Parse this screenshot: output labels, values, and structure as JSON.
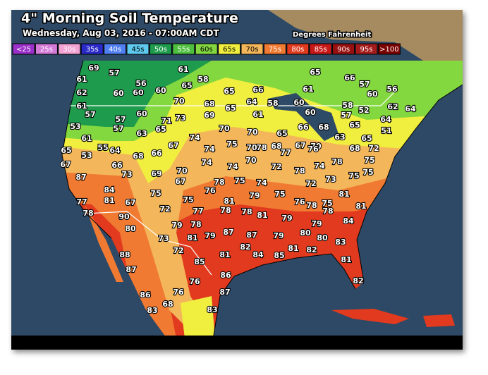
{
  "header": {
    "title": "4\" Morning Soil Temperature",
    "subtitle": "Wednesday, Aug 03, 2016 - 07:00AM CDT",
    "units": "Degrees Fahrenheit"
  },
  "legend": [
    {
      "label": "<25",
      "color": "#9a2fc9"
    },
    {
      "label": "25s",
      "color": "#d47bd8"
    },
    {
      "label": "30s",
      "color": "#f2a3d4"
    },
    {
      "label": "35s",
      "color": "#2a2ac8"
    },
    {
      "label": "40s",
      "color": "#4f7ff0"
    },
    {
      "label": "45s",
      "color": "#5fcaf0"
    },
    {
      "label": "50s",
      "color": "#1e9b4c"
    },
    {
      "label": "55s",
      "color": "#4fbf3f"
    },
    {
      "label": "60s",
      "color": "#84d83f"
    },
    {
      "label": "65s",
      "color": "#f0ee3e"
    },
    {
      "label": "70s",
      "color": "#f4b65a"
    },
    {
      "label": "75s",
      "color": "#f07a32"
    },
    {
      "label": "80s",
      "color": "#e23a1e"
    },
    {
      "label": "85s",
      "color": "#c81818"
    },
    {
      "label": "90s",
      "color": "#981010"
    },
    {
      "label": "95s",
      "color": "#a51a1a"
    },
    {
      "label": ">100",
      "color": "#7a0000"
    }
  ],
  "stations": [
    69,
    57,
    61,
    65,
    66,
    57,
    61,
    56,
    58,
    65,
    62,
    60,
    60,
    60,
    65,
    66,
    61,
    60,
    56,
    61,
    70,
    68,
    64,
    58,
    60,
    58,
    52,
    62,
    64,
    57,
    60,
    73,
    69,
    65,
    61,
    60,
    57,
    64,
    53,
    57,
    57,
    71,
    70,
    66,
    65,
    51,
    63,
    65,
    70,
    65,
    68,
    61,
    74,
    75,
    78,
    68,
    67,
    70,
    63,
    65,
    65,
    55,
    64,
    67,
    74,
    70,
    77,
    76,
    68,
    72,
    53,
    68,
    66,
    74,
    70,
    72,
    74,
    78,
    75,
    67,
    66,
    73,
    70,
    74,
    78,
    73,
    75,
    87,
    69,
    67,
    78,
    75,
    74,
    72,
    75,
    84,
    75,
    76,
    79,
    75,
    81,
    77,
    81,
    67,
    75,
    81,
    78,
    76,
    75,
    78,
    90,
    72,
    77,
    78,
    78,
    81,
    79,
    78,
    81,
    80,
    79,
    78,
    87,
    87,
    79,
    80,
    79,
    84,
    73,
    81,
    79,
    82,
    81,
    80,
    82,
    83,
    88,
    72,
    81,
    84,
    85,
    81,
    85,
    87,
    86,
    76,
    82,
    87,
    76,
    86,
    68,
    83,
    83
  ]
}
